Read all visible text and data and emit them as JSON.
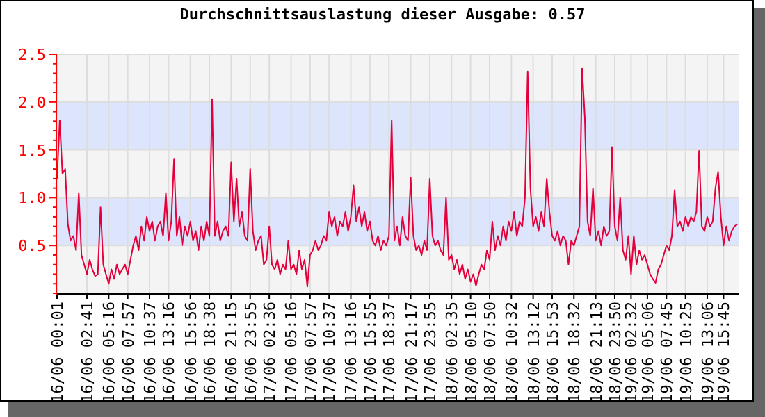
{
  "chart_data": {
    "type": "line",
    "title": "Durchschnittsauslastung dieser Ausgabe: 0.57",
    "categories": [
      "16/06 00:01",
      null,
      null,
      null,
      null,
      null,
      null,
      null,
      null,
      null,
      null,
      "16/06 02:41",
      null,
      null,
      null,
      null,
      null,
      null,
      null,
      "16/06 05:16",
      null,
      null,
      null,
      null,
      null,
      null,
      "16/06 07:57",
      null,
      null,
      null,
      null,
      null,
      null,
      null,
      "16/06 10:37",
      null,
      null,
      null,
      null,
      null,
      null,
      "16/06 13:16",
      null,
      null,
      null,
      null,
      null,
      null,
      null,
      "16/06 15:56",
      null,
      null,
      null,
      null,
      null,
      null,
      "16/06 18:38",
      null,
      null,
      null,
      null,
      null,
      null,
      null,
      "16/06 21:15",
      null,
      null,
      null,
      null,
      null,
      null,
      "16/06 23:55",
      null,
      null,
      null,
      null,
      null,
      null,
      "17/06 02:36",
      null,
      null,
      null,
      null,
      null,
      null,
      null,
      "17/06 05:16",
      null,
      null,
      null,
      null,
      null,
      null,
      "17/06 07:57",
      null,
      null,
      null,
      null,
      null,
      null,
      "17/06 10:37",
      null,
      null,
      null,
      null,
      null,
      null,
      null,
      "17/06 13:16",
      null,
      null,
      null,
      null,
      null,
      null,
      "17/06 15:55",
      null,
      null,
      null,
      null,
      null,
      null,
      "17/06 18:37",
      null,
      null,
      null,
      null,
      null,
      null,
      null,
      "17/06 21:17",
      null,
      null,
      null,
      null,
      null,
      null,
      "17/06 23:55",
      null,
      null,
      null,
      null,
      null,
      null,
      null,
      "18/06 02:35",
      null,
      null,
      null,
      null,
      null,
      null,
      "18/06 05:10",
      null,
      null,
      null,
      null,
      null,
      null,
      "18/06 07:50",
      null,
      null,
      null,
      null,
      null,
      null,
      null,
      "18/06 10:32",
      null,
      null,
      null,
      null,
      null,
      null,
      null,
      "18/06 13:12",
      null,
      null,
      null,
      null,
      null,
      null,
      "18/06 15:53",
      null,
      null,
      null,
      null,
      null,
      null,
      null,
      "18/06 18:32",
      null,
      null,
      null,
      null,
      null,
      null,
      null,
      "18/06 21:13",
      null,
      null,
      null,
      null,
      null,
      null,
      "18/06 23:50",
      null,
      null,
      null,
      null,
      null,
      "19/06 02:32",
      null,
      null,
      null,
      null,
      null,
      "19/06 05:06",
      null,
      null,
      null,
      null,
      null,
      null,
      "19/06 07:45",
      null,
      null,
      null,
      null,
      null,
      null,
      "19/06 10:25",
      null,
      null,
      null,
      null,
      null,
      null,
      null,
      "19/06 13:06",
      null,
      null,
      null,
      null,
      null,
      "19/06 15:45",
      null,
      null,
      null,
      null,
      null
    ],
    "series": [
      {
        "color": "#e4003a",
        "values": [
          1.2,
          1.81,
          1.25,
          1.3,
          0.72,
          0.55,
          0.6,
          0.45,
          1.05,
          0.4,
          0.3,
          0.2,
          0.35,
          0.25,
          0.18,
          0.2,
          0.9,
          0.3,
          0.2,
          0.1,
          0.25,
          0.15,
          0.3,
          0.2,
          0.25,
          0.3,
          0.2,
          0.35,
          0.5,
          0.6,
          0.45,
          0.7,
          0.55,
          0.8,
          0.65,
          0.75,
          0.55,
          0.7,
          0.75,
          0.6,
          1.05,
          0.55,
          0.75,
          1.4,
          0.6,
          0.8,
          0.5,
          0.7,
          0.6,
          0.75,
          0.55,
          0.65,
          0.45,
          0.7,
          0.55,
          0.75,
          0.6,
          2.03,
          0.6,
          0.75,
          0.55,
          0.65,
          0.7,
          0.6,
          1.37,
          0.75,
          1.2,
          0.7,
          0.85,
          0.6,
          0.55,
          1.3,
          0.65,
          0.45,
          0.55,
          0.6,
          0.3,
          0.35,
          0.7,
          0.3,
          0.25,
          0.35,
          0.2,
          0.3,
          0.25,
          0.55,
          0.25,
          0.3,
          0.2,
          0.45,
          0.25,
          0.35,
          0.07,
          0.4,
          0.45,
          0.55,
          0.45,
          0.5,
          0.6,
          0.55,
          0.85,
          0.7,
          0.8,
          0.6,
          0.75,
          0.7,
          0.85,
          0.65,
          0.8,
          1.13,
          0.75,
          0.9,
          0.7,
          0.85,
          0.65,
          0.75,
          0.55,
          0.5,
          0.6,
          0.45,
          0.55,
          0.5,
          0.6,
          1.81,
          0.55,
          0.7,
          0.5,
          0.8,
          0.6,
          0.55,
          1.21,
          0.6,
          0.45,
          0.5,
          0.4,
          0.55,
          0.45,
          1.2,
          0.6,
          0.5,
          0.55,
          0.45,
          0.4,
          1.0,
          0.35,
          0.4,
          0.25,
          0.35,
          0.2,
          0.3,
          0.15,
          0.25,
          0.12,
          0.2,
          0.08,
          0.2,
          0.3,
          0.25,
          0.45,
          0.35,
          0.75,
          0.45,
          0.6,
          0.5,
          0.7,
          0.55,
          0.75,
          0.65,
          0.85,
          0.6,
          0.75,
          0.7,
          1.0,
          2.32,
          1.1,
          0.7,
          0.8,
          0.65,
          0.85,
          0.7,
          1.2,
          0.85,
          0.6,
          0.55,
          0.65,
          0.5,
          0.6,
          0.55,
          0.3,
          0.55,
          0.5,
          0.6,
          0.7,
          2.35,
          1.84,
          0.75,
          0.6,
          1.1,
          0.55,
          0.65,
          0.5,
          0.7,
          0.6,
          0.65,
          1.53,
          0.7,
          0.55,
          1.0,
          0.45,
          0.35,
          0.6,
          0.2,
          0.6,
          0.3,
          0.45,
          0.35,
          0.4,
          0.3,
          0.2,
          0.15,
          0.11,
          0.25,
          0.3,
          0.4,
          0.5,
          0.45,
          0.6,
          1.08,
          0.7,
          0.75,
          0.65,
          0.8,
          0.7,
          0.8,
          0.75,
          0.85,
          1.49,
          0.7,
          0.65,
          0.8,
          0.7,
          0.75,
          1.1,
          1.27,
          0.8,
          0.5,
          0.7,
          0.55,
          0.65,
          0.7,
          0.72
        ]
      }
    ],
    "ylim": [
      0,
      2.5
    ],
    "yticks": [
      {
        "value": 0,
        "label": null
      },
      {
        "value": 0.1,
        "label": null
      },
      {
        "value": 0.2,
        "label": null
      },
      {
        "value": 0.3,
        "label": null
      },
      {
        "value": 0.4,
        "label": null
      },
      0.5,
      {
        "value": 0.6,
        "label": null
      },
      {
        "value": 0.7,
        "label": null
      },
      {
        "value": 0.8,
        "label": null
      },
      {
        "value": 0.9,
        "label": null
      },
      {
        "value": 1,
        "label": "1.0"
      },
      {
        "value": 1.1,
        "label": null
      },
      {
        "value": 1.2,
        "label": null
      },
      {
        "value": 1.3,
        "label": null
      },
      {
        "value": 1.4,
        "label": null
      },
      1.5,
      {
        "value": 1.6,
        "label": null
      },
      {
        "value": 1.7,
        "label": null
      },
      {
        "value": 1.8,
        "label": null
      },
      {
        "value": 1.9,
        "label": null
      },
      {
        "value": 2,
        "label": "2.0"
      },
      {
        "value": 2.1,
        "label": null
      },
      {
        "value": 2.2,
        "label": null
      },
      {
        "value": 2.3,
        "label": null
      },
      {
        "value": 2.4,
        "label": null
      },
      2.5
    ],
    "bands": [
      {
        "axis": "y",
        "from": 0.5,
        "to": 1.0,
        "color": "#dce5fb"
      },
      {
        "axis": "y",
        "from": 1.5,
        "to": 2.0,
        "color": "#dce5fb"
      }
    ],
    "grid": true,
    "line_style": "solid",
    "marker": "none"
  }
}
